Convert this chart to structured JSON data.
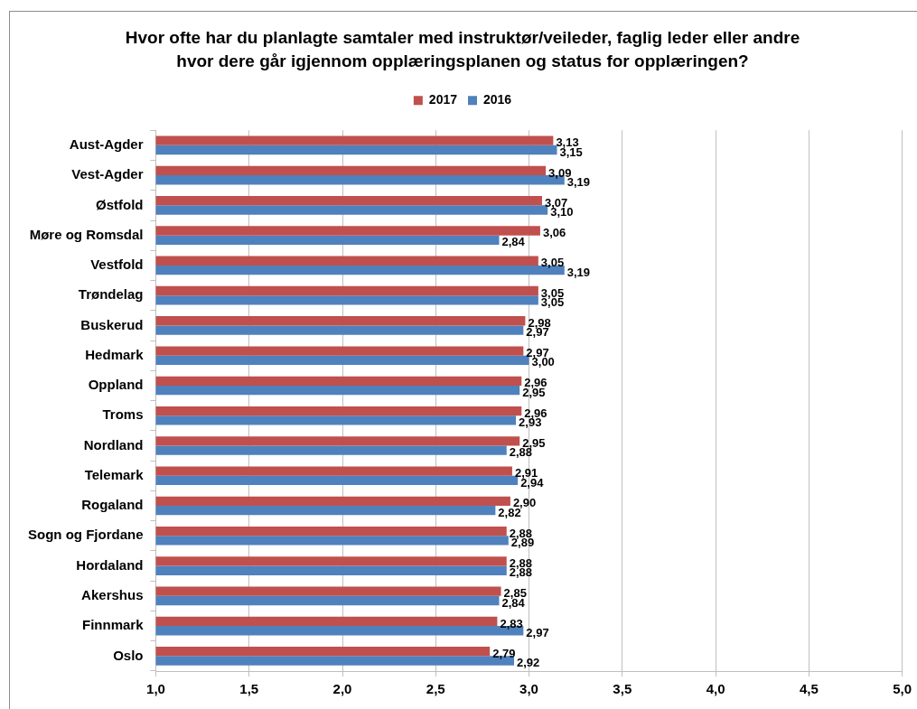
{
  "chart_data": {
    "type": "bar",
    "orientation": "horizontal",
    "title": "Hvor ofte har du planlagte samtaler med instruktør/veileder, faglig leder eller andre hvor dere går igjennom opplæringsplanen og status for opplæringen?",
    "categories": [
      "Aust-Agder",
      "Vest-Agder",
      "Østfold",
      "Møre og Romsdal",
      "Vestfold",
      "Trøndelag",
      "Buskerud",
      "Hedmark",
      "Oppland",
      "Troms",
      "Nordland",
      "Telemark",
      "Rogaland",
      "Sogn og Fjordane",
      "Hordaland",
      "Akershus",
      "Finnmark",
      "Oslo"
    ],
    "series": [
      {
        "name": "2017",
        "color": "#c0504d",
        "values": [
          3.13,
          3.09,
          3.07,
          3.06,
          3.05,
          3.05,
          2.98,
          2.97,
          2.96,
          2.96,
          2.95,
          2.91,
          2.9,
          2.88,
          2.88,
          2.85,
          2.83,
          2.79
        ],
        "value_labels": [
          "3,13",
          "3,09",
          "3,07",
          "3,06",
          "3,05",
          "3,05",
          "2,98",
          "2,97",
          "2,96",
          "2,96",
          "2,95",
          "2,91",
          "2,90",
          "2,88",
          "2,88",
          "2,85",
          "2,83",
          "2,79"
        ]
      },
      {
        "name": "2016",
        "color": "#4f81bd",
        "values": [
          3.15,
          3.19,
          3.1,
          2.84,
          3.19,
          3.05,
          2.97,
          3.0,
          2.95,
          2.93,
          2.88,
          2.94,
          2.82,
          2.89,
          2.88,
          2.84,
          2.97,
          2.92
        ],
        "value_labels": [
          "3,15",
          "3,19",
          "3,10",
          "2,84",
          "3,19",
          "3,05",
          "2,97",
          "3,00",
          "2,95",
          "2,93",
          "2,88",
          "2,94",
          "2,82",
          "2,89",
          "2,88",
          "2,84",
          "2,97",
          "2,92"
        ]
      }
    ],
    "xlim": [
      1,
      5
    ],
    "xticks": [
      {
        "value": 1,
        "label": "1,0"
      },
      {
        "value": 1.5,
        "label": "1,5"
      },
      {
        "value": 2,
        "label": "2,0"
      },
      {
        "value": 2.5,
        "label": "2,5"
      },
      {
        "value": 3,
        "label": "3,0"
      },
      {
        "value": 3.5,
        "label": "3,5"
      },
      {
        "value": 4,
        "label": "4,0"
      },
      {
        "value": 4.5,
        "label": "4,5"
      },
      {
        "value": 5,
        "label": "5,0"
      }
    ],
    "grid": "x",
    "legend": "top"
  }
}
